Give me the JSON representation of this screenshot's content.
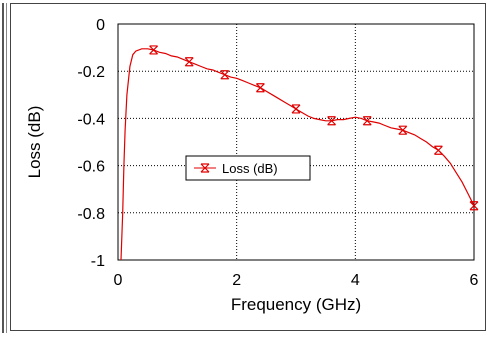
{
  "chart_data": {
    "type": "line",
    "title": "",
    "xlabel": "Frequency (GHz)",
    "ylabel": "Loss (dB)",
    "xlim": [
      0,
      6
    ],
    "ylim": [
      -1,
      0
    ],
    "x_ticks": [
      "0",
      "2",
      "4",
      "6"
    ],
    "y_ticks": [
      "0",
      "-0.2",
      "-0.4",
      "-0.6",
      "-0.8",
      "-1"
    ],
    "grid": true,
    "legend_position": "center-left",
    "series": [
      {
        "name": "Loss (dB)",
        "color": "#e00000",
        "marker": "hourglass-x",
        "x": [
          0.05,
          0.08,
          0.1,
          0.12,
          0.15,
          0.2,
          0.25,
          0.3,
          0.35,
          0.4,
          0.5,
          0.6,
          0.7,
          0.8,
          0.9,
          1.0,
          1.1,
          1.2,
          1.3,
          1.4,
          1.5,
          1.6,
          1.7,
          1.8,
          1.9,
          2.0,
          2.1,
          2.2,
          2.3,
          2.4,
          2.5,
          2.6,
          2.7,
          2.8,
          2.9,
          3.0,
          3.1,
          3.2,
          3.3,
          3.4,
          3.5,
          3.6,
          3.7,
          3.8,
          3.9,
          4.0,
          4.1,
          4.2,
          4.3,
          4.4,
          4.5,
          4.6,
          4.7,
          4.8,
          4.9,
          5.0,
          5.1,
          5.2,
          5.3,
          5.4,
          5.5,
          5.6,
          5.7,
          5.8,
          5.9,
          6.0
        ],
        "y": [
          -1.0,
          -0.8,
          -0.6,
          -0.45,
          -0.3,
          -0.18,
          -0.13,
          -0.115,
          -0.11,
          -0.105,
          -0.105,
          -0.11,
          -0.12,
          -0.125,
          -0.135,
          -0.14,
          -0.15,
          -0.16,
          -0.17,
          -0.18,
          -0.19,
          -0.195,
          -0.205,
          -0.215,
          -0.225,
          -0.23,
          -0.24,
          -0.25,
          -0.26,
          -0.27,
          -0.285,
          -0.3,
          -0.315,
          -0.33,
          -0.345,
          -0.36,
          -0.375,
          -0.39,
          -0.4,
          -0.405,
          -0.41,
          -0.41,
          -0.405,
          -0.405,
          -0.4,
          -0.395,
          -0.4,
          -0.41,
          -0.415,
          -0.42,
          -0.43,
          -0.44,
          -0.445,
          -0.45,
          -0.46,
          -0.47,
          -0.485,
          -0.5,
          -0.52,
          -0.535,
          -0.56,
          -0.59,
          -0.63,
          -0.67,
          -0.72,
          -0.77
        ],
        "marker_x": [
          0.6,
          1.2,
          1.8,
          2.4,
          3.0,
          3.6,
          4.2,
          4.8,
          5.4,
          6.0
        ],
        "marker_y": [
          -0.11,
          -0.16,
          -0.215,
          -0.27,
          -0.36,
          -0.41,
          -0.41,
          -0.45,
          -0.535,
          -0.77
        ]
      }
    ]
  }
}
